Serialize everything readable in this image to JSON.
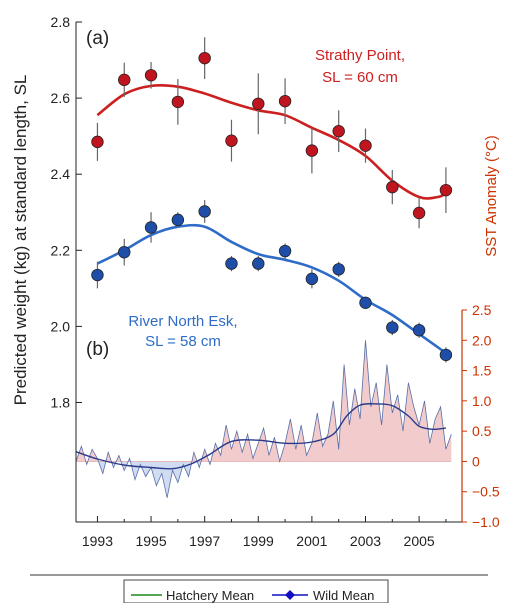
{
  "chart_data": {
    "type": "scatter",
    "ylabel": "Predicted weight (kg) at standard  length, SL",
    "y2label": "SST Anomaly (°C)",
    "panel_a": "(a)",
    "panel_b": "(b)",
    "xlim": [
      1992.2,
      2006.6
    ],
    "ylim": [
      1.57,
      2.8
    ],
    "y2lim": [
      -1.0,
      2.5
    ],
    "x_ticks": [
      1993,
      1995,
      1997,
      1999,
      2001,
      2003,
      2005
    ],
    "y_ticks": [
      1.8,
      2.0,
      2.2,
      2.4,
      2.6,
      2.8
    ],
    "y_ticklabels": [
      "1.8",
      "2.0",
      "2.2",
      "2.4",
      "2.6",
      "2.8"
    ],
    "y2_ticks": [
      -1.0,
      -0.5,
      0,
      0.5,
      1.0,
      1.5,
      2.0,
      2.5
    ],
    "y2_ticklabels": [
      "−1.0",
      "−0.5",
      "0",
      "0.5",
      "1.0",
      "1.5",
      "2.0",
      "2.5"
    ],
    "series": [
      {
        "label_line1": "Strathy Point,",
        "label_line2": "SL = 60 cm",
        "color": "#cc2020",
        "dot_color": "#c0141e",
        "x": [
          1993.0,
          1994.0,
          1995.0,
          1996.0,
          1997.0,
          1998.0,
          1999.0,
          2000.0,
          2001.0,
          2002.0,
          2003.0,
          2004.0,
          2005.0,
          2006.0
        ],
        "y": [
          2.485,
          2.648,
          2.66,
          2.59,
          2.705,
          2.488,
          2.585,
          2.592,
          2.462,
          2.513,
          2.475,
          2.366,
          2.298,
          2.358
        ],
        "err": [
          0.05,
          0.045,
          0.035,
          0.06,
          0.055,
          0.055,
          0.08,
          0.06,
          0.06,
          0.055,
          0.045,
          0.045,
          0.04,
          0.06
        ],
        "trend_x": [
          1993.0,
          1994.0,
          1995.0,
          1996.0,
          1997.0,
          1998.0,
          1999.0,
          2000.0,
          2001.0,
          2002.0,
          2003.0,
          2004.0,
          2005.0,
          2005.7,
          2006.0
        ],
        "trend_y": [
          2.555,
          2.61,
          2.632,
          2.63,
          2.612,
          2.588,
          2.568,
          2.555,
          2.522,
          2.49,
          2.448,
          2.383,
          2.34,
          2.34,
          2.35
        ]
      },
      {
        "label_line1": "River North Esk,",
        "label_line2": "SL = 58 cm",
        "color": "#2e6cc8",
        "dot_color": "#1f4ea8",
        "x": [
          1993.0,
          1994.0,
          1995.0,
          1996.0,
          1997.0,
          1998.0,
          1999.0,
          2000.0,
          2001.0,
          2002.0,
          2003.0,
          2004.0,
          2005.0,
          2006.0
        ],
        "y": [
          2.135,
          2.195,
          2.26,
          2.28,
          2.302,
          2.165,
          2.165,
          2.198,
          2.125,
          2.15,
          2.062,
          1.997,
          1.99,
          1.925
        ],
        "err": [
          0.035,
          0.035,
          0.04,
          0.02,
          0.03,
          0.02,
          0.02,
          0.02,
          0.025,
          0.02,
          0.015,
          0.02,
          0.02,
          0.02
        ],
        "trend_x": [
          1993.0,
          1994.0,
          1995.0,
          1996.0,
          1997.0,
          1998.0,
          1999.0,
          2000.0,
          2001.0,
          2002.0,
          2003.0,
          2004.0,
          2005.0,
          2006.0
        ],
        "trend_y": [
          2.165,
          2.2,
          2.24,
          2.262,
          2.262,
          2.222,
          2.19,
          2.175,
          2.155,
          2.12,
          2.07,
          2.03,
          1.98,
          1.93
        ]
      }
    ],
    "sst": {
      "fill_pos": "#f2cccc",
      "fill_neg": "#cfdcf2",
      "line_color": "#5a6fa8",
      "smooth_color": "#2a3a8a",
      "x": [
        1992.2,
        1992.4,
        1992.6,
        1992.8,
        1993.0,
        1993.2,
        1993.4,
        1993.6,
        1993.8,
        1994.0,
        1994.2,
        1994.4,
        1994.6,
        1994.8,
        1995.0,
        1995.2,
        1995.4,
        1995.6,
        1995.8,
        1996.0,
        1996.2,
        1996.4,
        1996.6,
        1996.8,
        1997.0,
        1997.2,
        1997.4,
        1997.6,
        1997.8,
        1998.0,
        1998.2,
        1998.4,
        1998.6,
        1998.8,
        1999.0,
        1999.2,
        1999.4,
        1999.6,
        1999.8,
        2000.0,
        2000.2,
        2000.4,
        2000.6,
        2000.8,
        2001.0,
        2001.2,
        2001.4,
        2001.6,
        2001.8,
        2002.0,
        2002.2,
        2002.4,
        2002.6,
        2002.8,
        2003.0,
        2003.2,
        2003.4,
        2003.6,
        2003.8,
        2004.0,
        2004.2,
        2004.4,
        2004.6,
        2004.8,
        2005.0,
        2005.2,
        2005.4,
        2005.6,
        2005.8,
        2006.0,
        2006.2
      ],
      "y": [
        0.0,
        0.25,
        -0.05,
        0.2,
        0.05,
        -0.2,
        0.15,
        -0.1,
        0.1,
        -0.15,
        0.05,
        -0.3,
        -0.05,
        -0.25,
        -0.1,
        -0.4,
        -0.2,
        -0.6,
        -0.15,
        -0.35,
        -0.05,
        -0.25,
        0.15,
        -0.1,
        0.2,
        -0.05,
        0.3,
        0.1,
        0.6,
        0.2,
        0.5,
        0.15,
        0.45,
        0.05,
        0.3,
        0.55,
        0.1,
        0.4,
        0.0,
        0.3,
        0.7,
        0.2,
        0.6,
        0.1,
        0.3,
        0.8,
        0.25,
        0.45,
        1.0,
        0.2,
        1.6,
        0.6,
        1.2,
        0.7,
        2.0,
        0.9,
        1.3,
        0.6,
        1.6,
        0.8,
        1.1,
        0.5,
        1.3,
        0.9,
        0.6,
        1.0,
        0.3,
        0.7,
        0.9,
        0.2,
        0.45
      ],
      "smooth_x": [
        1992.2,
        1993.0,
        1994.0,
        1995.0,
        1995.8,
        1996.5,
        1997.2,
        1998.0,
        1999.0,
        2000.0,
        2001.0,
        2001.8,
        2002.3,
        2002.8,
        2003.4,
        2004.0,
        2004.6,
        2005.0,
        2005.5,
        2006.0
      ],
      "smooth_y": [
        0.16,
        0.04,
        -0.06,
        -0.1,
        -0.12,
        -0.04,
        0.12,
        0.33,
        0.35,
        0.3,
        0.32,
        0.45,
        0.75,
        0.93,
        0.95,
        0.92,
        0.75,
        0.58,
        0.53,
        0.55
      ]
    },
    "legend": [
      {
        "label": "Hatchery Mean",
        "color": "#1a8a1a",
        "marker": "none"
      },
      {
        "label": "Wild Mean",
        "color": "#1010c0",
        "marker": "diamond"
      }
    ]
  }
}
